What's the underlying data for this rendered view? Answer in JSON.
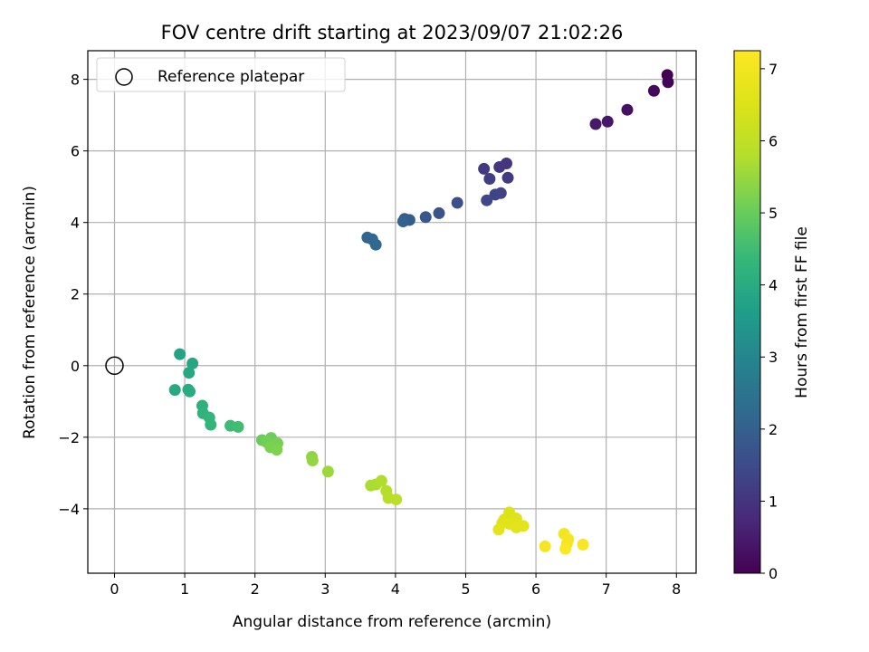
{
  "chart_data": {
    "type": "scatter",
    "title": "FOV centre drift starting at 2023/09/07 21:02:26",
    "xlabel": "Angular distance from reference (arcmin)",
    "ylabel": "Rotation from reference (arcmin)",
    "xlim": [
      -0.38,
      8.28
    ],
    "ylim": [
      -5.8,
      8.8
    ],
    "xticks": [
      0,
      1,
      2,
      3,
      4,
      5,
      6,
      7,
      8
    ],
    "yticks": [
      -4,
      -2,
      0,
      2,
      4,
      6,
      8
    ],
    "grid": true,
    "legend": {
      "position": "top-left",
      "entries": [
        "Reference platepar"
      ]
    },
    "reference_point": {
      "x": 0,
      "y": 0,
      "label": "Reference platepar"
    },
    "colorbar": {
      "label": "Hours from first FF file",
      "colormap": "viridis",
      "range": [
        0,
        7.25
      ],
      "ticks": [
        0,
        1,
        2,
        3,
        4,
        5,
        6,
        7
      ]
    },
    "points": [
      {
        "x": 7.87,
        "y": 8.12,
        "t": 0.0
      },
      {
        "x": 7.88,
        "y": 7.92,
        "t": 0.05
      },
      {
        "x": 7.68,
        "y": 7.68,
        "t": 0.15
      },
      {
        "x": 7.3,
        "y": 7.15,
        "t": 0.3
      },
      {
        "x": 7.02,
        "y": 6.82,
        "t": 0.4
      },
      {
        "x": 6.85,
        "y": 6.75,
        "t": 0.45
      },
      {
        "x": 5.58,
        "y": 5.65,
        "t": 1.0
      },
      {
        "x": 5.48,
        "y": 5.55,
        "t": 1.05
      },
      {
        "x": 5.26,
        "y": 5.5,
        "t": 1.1
      },
      {
        "x": 5.6,
        "y": 5.25,
        "t": 1.15
      },
      {
        "x": 5.34,
        "y": 5.22,
        "t": 1.2
      },
      {
        "x": 5.5,
        "y": 4.82,
        "t": 1.3
      },
      {
        "x": 5.42,
        "y": 4.78,
        "t": 1.35
      },
      {
        "x": 5.3,
        "y": 4.62,
        "t": 1.4
      },
      {
        "x": 4.88,
        "y": 4.55,
        "t": 1.6
      },
      {
        "x": 4.62,
        "y": 4.26,
        "t": 1.7
      },
      {
        "x": 4.43,
        "y": 4.15,
        "t": 1.8
      },
      {
        "x": 4.2,
        "y": 4.07,
        "t": 1.9
      },
      {
        "x": 4.13,
        "y": 4.1,
        "t": 1.95
      },
      {
        "x": 4.11,
        "y": 4.03,
        "t": 2.0
      },
      {
        "x": 3.6,
        "y": 3.58,
        "t": 2.1
      },
      {
        "x": 3.67,
        "y": 3.53,
        "t": 2.15
      },
      {
        "x": 3.72,
        "y": 3.38,
        "t": 2.2
      },
      {
        "x": 0.93,
        "y": 0.32,
        "t": 3.8
      },
      {
        "x": 1.11,
        "y": 0.06,
        "t": 3.85
      },
      {
        "x": 1.06,
        "y": -0.2,
        "t": 3.9
      },
      {
        "x": 0.86,
        "y": -0.68,
        "t": 3.95
      },
      {
        "x": 1.05,
        "y": -0.67,
        "t": 4.0
      },
      {
        "x": 1.07,
        "y": -0.72,
        "t": 4.02
      },
      {
        "x": 1.25,
        "y": -1.12,
        "t": 4.15
      },
      {
        "x": 1.26,
        "y": -1.33,
        "t": 4.2
      },
      {
        "x": 1.35,
        "y": -1.45,
        "t": 4.25
      },
      {
        "x": 1.37,
        "y": -1.65,
        "t": 4.3
      },
      {
        "x": 1.65,
        "y": -1.68,
        "t": 4.45
      },
      {
        "x": 1.76,
        "y": -1.71,
        "t": 4.5
      },
      {
        "x": 2.1,
        "y": -2.08,
        "t": 5.0
      },
      {
        "x": 2.23,
        "y": -2.02,
        "t": 5.05
      },
      {
        "x": 2.16,
        "y": -2.13,
        "t": 5.1
      },
      {
        "x": 2.32,
        "y": -2.17,
        "t": 5.15
      },
      {
        "x": 2.22,
        "y": -2.28,
        "t": 5.2
      },
      {
        "x": 2.31,
        "y": -2.35,
        "t": 5.25
      },
      {
        "x": 2.81,
        "y": -2.55,
        "t": 5.4
      },
      {
        "x": 2.82,
        "y": -2.65,
        "t": 5.45
      },
      {
        "x": 3.04,
        "y": -2.96,
        "t": 5.55
      },
      {
        "x": 3.65,
        "y": -3.35,
        "t": 5.7
      },
      {
        "x": 3.72,
        "y": -3.32,
        "t": 5.72
      },
      {
        "x": 3.8,
        "y": -3.22,
        "t": 5.75
      },
      {
        "x": 3.87,
        "y": -3.5,
        "t": 5.8
      },
      {
        "x": 3.9,
        "y": -3.7,
        "t": 5.85
      },
      {
        "x": 4.01,
        "y": -3.74,
        "t": 5.9
      },
      {
        "x": 5.62,
        "y": -4.1,
        "t": 6.5
      },
      {
        "x": 5.55,
        "y": -4.3,
        "t": 6.55
      },
      {
        "x": 5.72,
        "y": -4.27,
        "t": 6.58
      },
      {
        "x": 5.52,
        "y": -4.4,
        "t": 6.6
      },
      {
        "x": 5.62,
        "y": -4.42,
        "t": 6.62
      },
      {
        "x": 5.82,
        "y": -4.48,
        "t": 6.65
      },
      {
        "x": 5.72,
        "y": -4.52,
        "t": 6.67
      },
      {
        "x": 5.47,
        "y": -4.58,
        "t": 6.7
      },
      {
        "x": 6.4,
        "y": -4.7,
        "t": 7.0
      },
      {
        "x": 6.46,
        "y": -4.85,
        "t": 7.05
      },
      {
        "x": 6.44,
        "y": -4.98,
        "t": 7.1
      },
      {
        "x": 6.67,
        "y": -5.0,
        "t": 7.15
      },
      {
        "x": 6.13,
        "y": -5.05,
        "t": 7.1
      },
      {
        "x": 6.42,
        "y": -5.12,
        "t": 7.2
      }
    ]
  }
}
